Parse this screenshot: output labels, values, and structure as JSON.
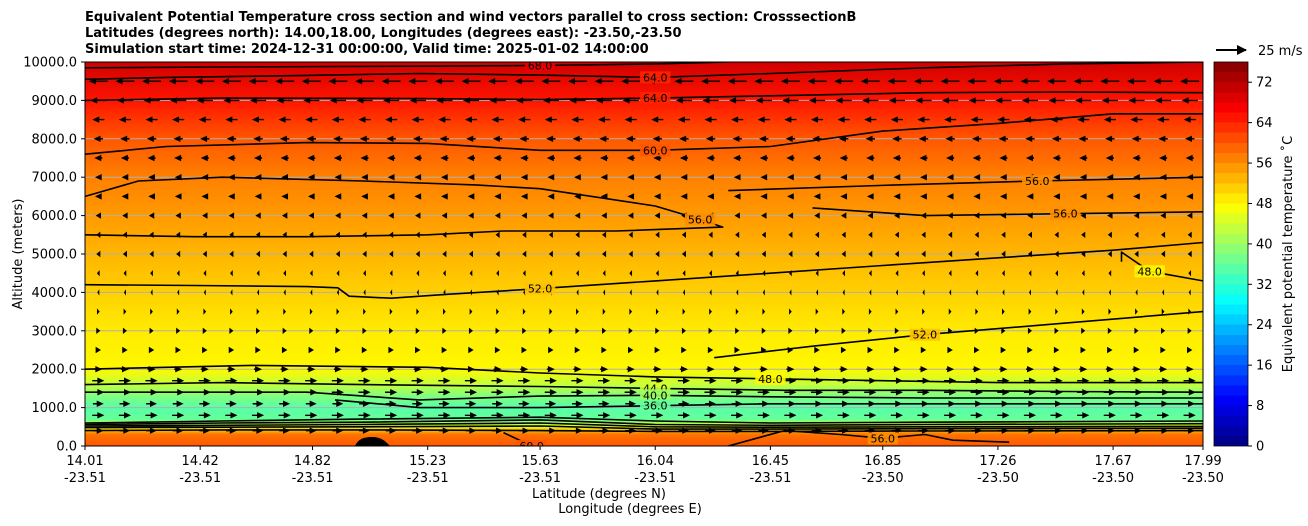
{
  "chart_data": {
    "type": "contour",
    "title_lines": [
      "Equivalent Potential Temperature cross section and wind vectors parallel to cross section: CrosssectionB",
      "Latitudes (degrees north): 14.00,18.00, Longitudes (degrees east): -23.50,-23.50",
      "Simulation start time: 2024-12-31 00:00:00, Valid time: 2025-01-02 14:00:00"
    ],
    "xlabel_lat": "Latitude (degrees N)",
    "xlabel_lon": "Longitude (degrees E)",
    "ylabel": "Altitude (meters)",
    "ylim": [
      0,
      10000
    ],
    "yticks": [
      "0.0",
      "1000.0",
      "2000.0",
      "3000.0",
      "4000.0",
      "5000.0",
      "6000.0",
      "7000.0",
      "8000.0",
      "9000.0",
      "10000.0"
    ],
    "xticks_lat": [
      "14.01",
      "14.42",
      "14.82",
      "15.23",
      "15.63",
      "16.04",
      "16.45",
      "16.85",
      "17.26",
      "17.67",
      "17.99"
    ],
    "xticks_lon": [
      "-23.51",
      "-23.51",
      "-23.51",
      "-23.51",
      "-23.51",
      "-23.51",
      "-23.51",
      "-23.50",
      "-23.50",
      "-23.50",
      "-23.50"
    ],
    "colorbar": {
      "label": "Equivalent potential temperature ˚C",
      "range": [
        0,
        76
      ],
      "ticks": [
        "0",
        "8",
        "16",
        "24",
        "32",
        "40",
        "48",
        "56",
        "64",
        "72"
      ]
    },
    "quiver_key": "25 m/s",
    "contour_labels": [
      "68.0",
      "64.0",
      "60.0",
      "56.0",
      "52.0",
      "48.0",
      "48.0",
      "44.0",
      "40.0",
      "36.0",
      "56.0",
      "60.0",
      "56.0",
      "52.0",
      "40.0"
    ],
    "theta_profile": [
      {
        "z": 0,
        "theta": 60
      },
      {
        "z": 300,
        "theta": 58
      },
      {
        "z": 500,
        "theta": 46
      },
      {
        "z": 700,
        "theta": 36
      },
      {
        "z": 1000,
        "theta": 35
      },
      {
        "z": 1300,
        "theta": 38
      },
      {
        "z": 1600,
        "theta": 43
      },
      {
        "z": 2000,
        "theta": 48
      },
      {
        "z": 3000,
        "theta": 49
      },
      {
        "z": 4000,
        "theta": 51
      },
      {
        "z": 5000,
        "theta": 53
      },
      {
        "z": 6000,
        "theta": 55
      },
      {
        "z": 7000,
        "theta": 57
      },
      {
        "z": 8000,
        "theta": 60
      },
      {
        "z": 9000,
        "theta": 65
      },
      {
        "z": 10000,
        "theta": 70
      }
    ],
    "wind_profile": [
      {
        "z": 400,
        "u": 8
      },
      {
        "z": 800,
        "u": 9
      },
      {
        "z": 1100,
        "u": 8
      },
      {
        "z": 1400,
        "u": 9
      },
      {
        "z": 1700,
        "u": 9
      },
      {
        "z": 2000,
        "u": 6
      },
      {
        "z": 2500,
        "u": 4
      },
      {
        "z": 3000,
        "u": 3
      },
      {
        "z": 3500,
        "u": 2
      },
      {
        "z": 4000,
        "u": -1
      },
      {
        "z": 4500,
        "u": -2
      },
      {
        "z": 5000,
        "u": -3
      },
      {
        "z": 5500,
        "u": -3
      },
      {
        "z": 6000,
        "u": -4
      },
      {
        "z": 6500,
        "u": -5
      },
      {
        "z": 7000,
        "u": -5
      },
      {
        "z": 7500,
        "u": -6
      },
      {
        "z": 8000,
        "u": -7
      },
      {
        "z": 8500,
        "u": -9
      },
      {
        "z": 9000,
        "u": -12
      },
      {
        "z": 9500,
        "u": -14
      }
    ],
    "contours": [
      {
        "level": 68,
        "label": "68.0",
        "pts": [
          [
            14.01,
            9850
          ],
          [
            14.5,
            9870
          ],
          [
            15.2,
            9890
          ],
          [
            15.63,
            9910
          ],
          [
            16.04,
            9950
          ],
          [
            16.3,
            10000
          ]
        ]
      },
      {
        "level": 64,
        "label": "64.0",
        "pts": [
          [
            14.01,
            9550
          ],
          [
            14.3,
            9600
          ],
          [
            14.8,
            9650
          ],
          [
            15.2,
            9700
          ],
          [
            15.63,
            9660
          ],
          [
            16.04,
            9600
          ],
          [
            16.45,
            9700
          ],
          [
            17.0,
            9850
          ],
          [
            17.5,
            9950
          ],
          [
            17.99,
            10000
          ]
        ]
      },
      {
        "level": 64,
        "label": "64.0",
        "pts": [
          [
            14.01,
            9000
          ],
          [
            14.5,
            9060
          ],
          [
            15.2,
            9050
          ],
          [
            15.63,
            9020
          ],
          [
            16.04,
            9060
          ],
          [
            16.45,
            9120
          ],
          [
            17.0,
            9200
          ],
          [
            17.5,
            9220
          ],
          [
            17.99,
            9200
          ]
        ]
      },
      {
        "level": 60,
        "label": "60.0",
        "pts": [
          [
            14.01,
            7600
          ],
          [
            14.3,
            7800
          ],
          [
            14.8,
            7900
          ],
          [
            15.23,
            7880
          ],
          [
            15.63,
            7700
          ],
          [
            16.04,
            7700
          ],
          [
            16.45,
            7800
          ],
          [
            16.85,
            8200
          ],
          [
            17.26,
            8400
          ],
          [
            17.67,
            8650
          ],
          [
            17.99,
            8650
          ]
        ]
      },
      {
        "level": 56,
        "label": "56.0",
        "pts": [
          [
            14.01,
            6500
          ],
          [
            14.2,
            6900
          ],
          [
            14.5,
            7000
          ],
          [
            15.0,
            6900
          ],
          [
            15.4,
            6800
          ],
          [
            15.63,
            6700
          ],
          [
            16.04,
            6250
          ],
          [
            16.2,
            5900
          ],
          [
            16.28,
            5700
          ],
          [
            15.9,
            5600
          ],
          [
            15.5,
            5600
          ],
          [
            15.23,
            5500
          ],
          [
            14.8,
            5450
          ],
          [
            14.4,
            5450
          ],
          [
            14.01,
            5500
          ]
        ]
      },
      {
        "level": 56,
        "label": "56.0",
        "pts": [
          [
            16.6,
            6200
          ],
          [
            17.0,
            6000
          ],
          [
            17.5,
            6050
          ],
          [
            17.99,
            6100
          ]
        ]
      },
      {
        "level": 56,
        "label": "56.0",
        "pts": [
          [
            16.3,
            6650
          ],
          [
            16.9,
            6800
          ],
          [
            17.4,
            6900
          ],
          [
            17.99,
            7000
          ]
        ]
      },
      {
        "level": 52,
        "label": "52.0",
        "pts": [
          [
            14.01,
            4200
          ],
          [
            14.4,
            4180
          ],
          [
            14.8,
            4150
          ],
          [
            14.91,
            4120
          ],
          [
            14.95,
            3900
          ],
          [
            15.1,
            3850
          ],
          [
            15.3,
            3950
          ],
          [
            15.63,
            4100
          ],
          [
            16.04,
            4300
          ],
          [
            16.45,
            4500
          ],
          [
            16.85,
            4700
          ],
          [
            17.26,
            4900
          ],
          [
            17.67,
            5100
          ],
          [
            17.99,
            5300
          ]
        ]
      },
      {
        "level": 48,
        "label": "48.0",
        "pts": [
          [
            17.7,
            4800
          ],
          [
            17.7,
            5050
          ],
          [
            17.8,
            4550
          ],
          [
            17.99,
            4300
          ]
        ]
      },
      {
        "level": 52,
        "label": "52.0",
        "pts": [
          [
            16.25,
            2300
          ],
          [
            16.6,
            2600
          ],
          [
            17.0,
            2900
          ],
          [
            17.5,
            3200
          ],
          [
            17.99,
            3500
          ]
        ]
      },
      {
        "level": 48,
        "label": "48.0",
        "pts": [
          [
            14.01,
            2000
          ],
          [
            14.6,
            2100
          ],
          [
            15.23,
            2050
          ],
          [
            15.63,
            1900
          ],
          [
            16.04,
            1800
          ],
          [
            16.45,
            1750
          ],
          [
            16.85,
            1700
          ],
          [
            17.26,
            1650
          ],
          [
            17.67,
            1650
          ],
          [
            17.99,
            1650
          ]
        ]
      },
      {
        "level": 44,
        "label": "44.0",
        "pts": [
          [
            14.01,
            1600
          ],
          [
            14.5,
            1650
          ],
          [
            15.0,
            1600
          ],
          [
            15.63,
            1550
          ],
          [
            16.04,
            1500
          ],
          [
            16.5,
            1450
          ],
          [
            17.0,
            1450
          ],
          [
            17.5,
            1420
          ],
          [
            17.99,
            1400
          ]
        ]
      },
      {
        "level": 40,
        "label": "40.0",
        "pts": [
          [
            14.01,
            1400
          ],
          [
            14.8,
            1400
          ],
          [
            15.2,
            1200
          ],
          [
            15.63,
            1300
          ],
          [
            16.04,
            1320
          ],
          [
            16.45,
            1280
          ],
          [
            17.0,
            1250
          ],
          [
            17.99,
            1250
          ]
        ]
      },
      {
        "level": 36,
        "label": "36.0",
        "pts": [
          [
            14.9,
            1200
          ],
          [
            15.2,
            1000
          ],
          [
            15.63,
            1000
          ],
          [
            16.04,
            1050
          ],
          [
            16.45,
            1100
          ],
          [
            17.0,
            1100
          ],
          [
            17.99,
            1100
          ]
        ]
      },
      {
        "level": 36,
        "label": "",
        "pts": [
          [
            14.01,
            600
          ],
          [
            14.5,
            650
          ],
          [
            15.0,
            700
          ],
          [
            15.63,
            750
          ],
          [
            16.04,
            650
          ],
          [
            16.45,
            600
          ],
          [
            17.0,
            620
          ],
          [
            17.99,
            650
          ]
        ]
      },
      {
        "level": 40,
        "label": "",
        "pts": [
          [
            14.01,
            560
          ],
          [
            14.5,
            600
          ],
          [
            15.0,
            620
          ],
          [
            15.63,
            680
          ],
          [
            16.04,
            560
          ],
          [
            16.45,
            540
          ],
          [
            17.0,
            560
          ],
          [
            17.99,
            580
          ]
        ]
      },
      {
        "level": 44,
        "label": "",
        "pts": [
          [
            14.01,
            520
          ],
          [
            14.5,
            540
          ],
          [
            15.0,
            560
          ],
          [
            15.63,
            600
          ],
          [
            16.04,
            500
          ],
          [
            16.45,
            490
          ],
          [
            17.0,
            500
          ],
          [
            17.99,
            510
          ]
        ]
      },
      {
        "level": 48,
        "label": "",
        "pts": [
          [
            14.01,
            480
          ],
          [
            14.5,
            490
          ],
          [
            15.0,
            500
          ],
          [
            15.63,
            520
          ],
          [
            16.04,
            440
          ],
          [
            16.45,
            440
          ],
          [
            17.0,
            450
          ],
          [
            17.99,
            460
          ]
        ]
      },
      {
        "level": 56,
        "label": "",
        "pts": [
          [
            14.01,
            400
          ],
          [
            14.5,
            420
          ],
          [
            15.0,
            420
          ],
          [
            15.63,
            400
          ],
          [
            16.04,
            380
          ],
          [
            16.45,
            380
          ],
          [
            17.0,
            390
          ],
          [
            17.99,
            400
          ]
        ]
      },
      {
        "level": 60,
        "label": "60.0",
        "pts": [
          [
            15.5,
            350
          ],
          [
            15.6,
            0
          ]
        ]
      },
      {
        "level": 56,
        "label": "56.0",
        "pts": [
          [
            16.3,
            0
          ],
          [
            16.5,
            400
          ],
          [
            16.7,
            300
          ],
          [
            16.85,
            200
          ],
          [
            17.0,
            300
          ],
          [
            17.1,
            150
          ],
          [
            17.3,
            100
          ]
        ]
      }
    ]
  }
}
